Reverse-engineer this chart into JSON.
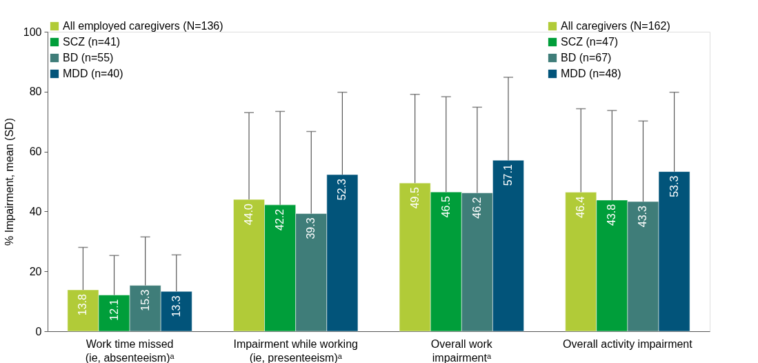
{
  "chart_data": {
    "type": "bar",
    "ylabel": "% Impairment, mean (SD)",
    "categories": [
      "Work time missed\n(ie, absenteeism)ᵃ",
      "Impairment while working\n(ie, presenteeism)ᵃ",
      "Overall work\nimpairmentᵃ",
      "Overall activity impairment"
    ],
    "series": [
      {
        "name": "All employed caregivers (N=136)",
        "color": "#b1cb38",
        "values": [
          13.8,
          44.0,
          49.5,
          null
        ],
        "value_labels": [
          "13.8",
          "44.0",
          "49.5",
          null
        ],
        "errors": [
          [
            13.8,
            28.0
          ],
          [
            44.0,
            73.0
          ],
          [
            49.5,
            79.1
          ],
          null
        ]
      },
      {
        "name": "SCZ (n=41)",
        "color": "#009e3a",
        "values": [
          12.1,
          42.2,
          46.5,
          null
        ],
        "value_labels": [
          "12.1",
          "42.2",
          "46.5",
          null
        ],
        "errors": [
          [
            12.1,
            25.3
          ],
          [
            42.2,
            73.4
          ],
          [
            46.5,
            78.3
          ],
          null
        ]
      },
      {
        "name": "BD (n=55)",
        "color": "#3f7d79",
        "values": [
          15.3,
          39.3,
          46.2,
          null
        ],
        "value_labels": [
          "15.3",
          "39.3",
          "46.2",
          null
        ],
        "errors": [
          [
            15.3,
            31.5
          ],
          [
            39.3,
            66.7
          ],
          [
            46.2,
            74.8
          ],
          null
        ]
      },
      {
        "name": "MDD (n=40)",
        "color": "#02547a",
        "values": [
          13.3,
          52.3,
          57.1,
          null
        ],
        "value_labels": [
          "13.3",
          "52.3",
          "57.1",
          null
        ],
        "errors": [
          [
            13.3,
            25.5
          ],
          [
            52.3,
            79.8
          ],
          [
            57.1,
            84.8
          ],
          null
        ]
      },
      {
        "name": "All caregivers (N=162)",
        "color": "#b1cb38",
        "values": [
          null,
          null,
          null,
          46.4
        ],
        "value_labels": [
          null,
          null,
          null,
          "46.4"
        ],
        "errors": [
          null,
          null,
          null,
          [
            46.4,
            74.3
          ]
        ]
      },
      {
        "name": "SCZ (n=47)",
        "color": "#009e3a",
        "values": [
          null,
          null,
          null,
          43.8
        ],
        "value_labels": [
          null,
          null,
          null,
          "43.8"
        ],
        "errors": [
          null,
          null,
          null,
          [
            43.8,
            73.7
          ]
        ]
      },
      {
        "name": "BD (n=67)",
        "color": "#3f7d79",
        "values": [
          null,
          null,
          null,
          43.3
        ],
        "value_labels": [
          null,
          null,
          null,
          "43.3"
        ],
        "errors": [
          null,
          null,
          null,
          [
            43.3,
            70.2
          ]
        ]
      },
      {
        "name": "MDD (n=48)",
        "color": "#02547a",
        "values": [
          null,
          null,
          null,
          53.3
        ],
        "value_labels": [
          null,
          null,
          null,
          "53.3"
        ],
        "errors": [
          null,
          null,
          null,
          [
            53.3,
            79.8
          ]
        ]
      }
    ],
    "ylim": [
      0,
      100
    ],
    "yticks": [
      0,
      20,
      40,
      60,
      80,
      100
    ],
    "grid": false,
    "legend": "top"
  }
}
